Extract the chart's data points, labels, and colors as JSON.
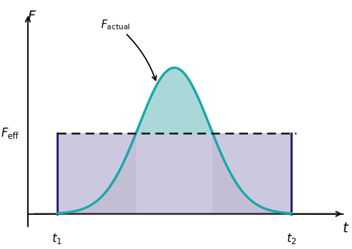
{
  "t1": 1.0,
  "t2": 9.0,
  "t_mid": 5.0,
  "F_max": 1.0,
  "F_eff": 0.55,
  "bell_sigma": 1.2,
  "bell_color": "#18a8a8",
  "bell_fill_color": "#aad8d8",
  "rect_fill_color": "#ccc8e0",
  "bell_tail_color": "#c0b8cc",
  "rect_edge_color": "#2e1a6e",
  "dashed_color": "#111111",
  "axis_color": "#111111",
  "axis_label_F": "$F$",
  "axis_label_t": "$t$",
  "label_t1": "$t_1$",
  "label_t2": "$t_2$",
  "label_Feff": "$F_{\\mathrm{eff}}$",
  "label_Factual": "$F_{\\mathrm{actual}}$",
  "xlim": [
    0.0,
    11.0
  ],
  "ylim": [
    -0.18,
    1.45
  ],
  "figsize": [
    5.04,
    3.57
  ],
  "dpi": 100
}
